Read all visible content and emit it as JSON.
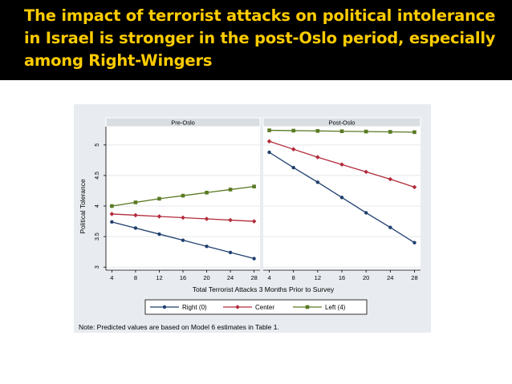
{
  "slide": {
    "title": "The impact of terrorist attacks on political intolerance in Israel is stronger in the post-Oslo period, especially among Right-Wingers"
  },
  "figure": {
    "note": "Note: Predicted values are based on Model 6 estimates in Table 1."
  },
  "chart_data": {
    "type": "line",
    "xlabel": "Total Terrorist Attacks 3 Months Prior to Survey",
    "ylabel": "Political Tolerance",
    "x": [
      4,
      8,
      12,
      16,
      20,
      24,
      28
    ],
    "xticks": [
      "4",
      "8",
      "12",
      "16",
      "20",
      "24",
      "28"
    ],
    "yticks": [
      "3",
      "3.5",
      "4",
      "4.5",
      "5"
    ],
    "ytick_values": [
      3,
      3.5,
      4,
      4.5,
      5
    ],
    "ylim": [
      2.95,
      5.3
    ],
    "xlim": [
      3,
      29
    ],
    "grid": true,
    "legend_position": "bottom",
    "legend": [
      "Right (0)",
      "Center",
      "Left (4)"
    ],
    "series_colors": [
      "#1f3f6e",
      "#b22b3a",
      "#5a7a23"
    ],
    "panels": [
      {
        "name": "Pre-Oslo",
        "series": [
          {
            "name": "Right (0)",
            "values": [
              3.74,
              3.64,
              3.54,
              3.44,
              3.34,
              3.24,
              3.14
            ]
          },
          {
            "name": "Center",
            "values": [
              3.87,
              3.85,
              3.83,
              3.81,
              3.79,
              3.77,
              3.75
            ]
          },
          {
            "name": "Left (4)",
            "values": [
              4.0,
              4.06,
              4.12,
              4.17,
              4.22,
              4.27,
              4.32
            ]
          }
        ]
      },
      {
        "name": "Post-Oslo",
        "series": [
          {
            "name": "Right (0)",
            "values": [
              4.88,
              4.63,
              4.39,
              4.14,
              3.89,
              3.65,
              3.4
            ]
          },
          {
            "name": "Center",
            "values": [
              5.06,
              4.93,
              4.8,
              4.68,
              4.56,
              4.44,
              4.31
            ]
          },
          {
            "name": "Left (4)",
            "values": [
              5.24,
              5.235,
              5.23,
              5.225,
              5.22,
              5.215,
              5.21
            ]
          }
        ]
      }
    ]
  }
}
